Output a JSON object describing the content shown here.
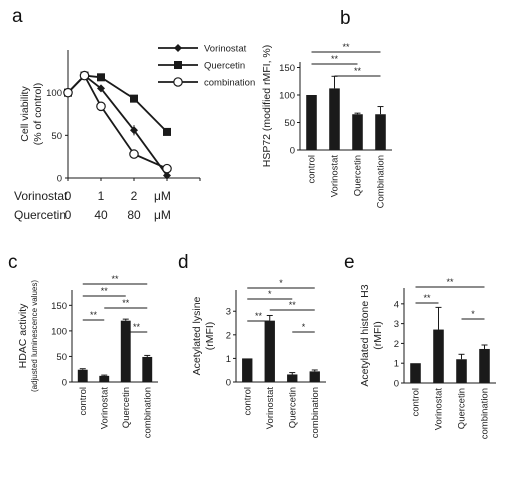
{
  "panel_labels": {
    "a": "a",
    "b": "b",
    "c": "c",
    "d": "d",
    "e": "e"
  },
  "chart_data": [
    {
      "id": "a",
      "type": "line",
      "ylabel_lines": [
        "Cell viability",
        "(% of control)"
      ],
      "ylim": [
        0,
        150
      ],
      "yticks": [
        0,
        50,
        100
      ],
      "xlim": [
        0,
        4
      ],
      "x_positions": [
        0,
        0.5,
        1,
        2,
        3
      ],
      "x_rows": [
        {
          "label": "Vorinostat",
          "ticks": [
            {
              "x": 0,
              "text": "0"
            },
            {
              "x": 1,
              "text": "1"
            },
            {
              "x": 2,
              "text": "2"
            }
          ],
          "unit": "μM"
        },
        {
          "label": "Quercetin",
          "ticks": [
            {
              "x": 0,
              "text": "0"
            },
            {
              "x": 1,
              "text": "40"
            },
            {
              "x": 2,
              "text": "80"
            }
          ],
          "unit": "μM"
        }
      ],
      "series": [
        {
          "name": "Vorinostat",
          "marker": "diamond",
          "x": [
            0,
            0.5,
            1,
            2,
            3
          ],
          "y": [
            100,
            120,
            105,
            56,
            3
          ],
          "err": [
            8,
            4,
            4,
            6,
            2
          ]
        },
        {
          "name": "Quercetin",
          "marker": "square",
          "x": [
            0,
            0.5,
            1,
            2,
            3
          ],
          "y": [
            100,
            120,
            118,
            93,
            54
          ],
          "err": [
            8,
            4,
            3,
            4,
            3
          ]
        },
        {
          "name": "combination",
          "marker": "circle",
          "x": [
            0,
            0.5,
            1,
            2,
            3
          ],
          "y": [
            100,
            120,
            84,
            28,
            11
          ],
          "err": [
            8,
            4,
            4,
            2,
            1
          ]
        }
      ],
      "legend_position": "top-right"
    },
    {
      "id": "b",
      "type": "bar",
      "ylabel_lines": [
        "HSP72 (modified rMFI, %)"
      ],
      "ylim": [
        0,
        160
      ],
      "yticks": [
        0,
        50,
        100,
        150
      ],
      "categories": [
        "control",
        "Vorinostat",
        "Quercetin",
        "Combination"
      ],
      "values": [
        100,
        112,
        65,
        65
      ],
      "errors": [
        0,
        22,
        2,
        14
      ],
      "significance": [
        {
          "from": 0,
          "to": 3,
          "text": "**"
        },
        {
          "from": 0,
          "to": 2,
          "text": "**"
        },
        {
          "from": 1,
          "to": 3,
          "text": "**"
        }
      ]
    },
    {
      "id": "c",
      "type": "bar",
      "ylabel_lines": [
        "HDAC activity"
      ],
      "ylabel_small": "(adjusted luminescence values)",
      "ylim": [
        0,
        180
      ],
      "yticks": [
        0,
        50,
        100,
        150
      ],
      "categories": [
        "control",
        "Vorinostat",
        "Quercetin",
        "combination"
      ],
      "values": [
        24,
        12,
        120,
        49
      ],
      "errors": [
        2,
        1.5,
        3,
        3
      ],
      "significance": [
        {
          "from": 0,
          "to": 3,
          "text": "**"
        },
        {
          "from": 0,
          "to": 2,
          "text": "**"
        },
        {
          "from": 1,
          "to": 3,
          "text": "**"
        },
        {
          "from": 0,
          "to": 1,
          "text": "**"
        },
        {
          "from": 2,
          "to": 3,
          "text": "**"
        }
      ]
    },
    {
      "id": "d",
      "type": "bar",
      "ylabel_lines": [
        "Acetylated lysine",
        "(rMFI)"
      ],
      "ylim": [
        0,
        3.9
      ],
      "yticks": [
        0,
        1,
        2,
        3
      ],
      "categories": [
        "control",
        "Vorinostat",
        "Quercetin",
        "combination"
      ],
      "values": [
        1.0,
        2.6,
        0.32,
        0.45
      ],
      "errors": [
        0,
        0.22,
        0.08,
        0.06
      ],
      "significance": [
        {
          "from": 0,
          "to": 3,
          "text": "*"
        },
        {
          "from": 0,
          "to": 2,
          "text": "*"
        },
        {
          "from": 1,
          "to": 3,
          "text": "**"
        },
        {
          "from": 0,
          "to": 1,
          "text": "**"
        },
        {
          "from": 2,
          "to": 3,
          "text": "*"
        }
      ]
    },
    {
      "id": "e",
      "type": "bar",
      "ylabel_lines": [
        "Acetylated histone H3",
        "(rMFI)"
      ],
      "ylim": [
        0,
        4.8
      ],
      "yticks": [
        0,
        1,
        2,
        3,
        4
      ],
      "categories": [
        "control",
        "Vorinostat",
        "Quercetin",
        "combination"
      ],
      "values": [
        1.0,
        2.7,
        1.2,
        1.72
      ],
      "errors": [
        0,
        1.12,
        0.25,
        0.2
      ],
      "significance": [
        {
          "from": 0,
          "to": 3,
          "text": "**"
        },
        {
          "from": 0,
          "to": 1,
          "text": "**"
        },
        {
          "from": 2,
          "to": 3,
          "text": "*"
        }
      ]
    }
  ]
}
